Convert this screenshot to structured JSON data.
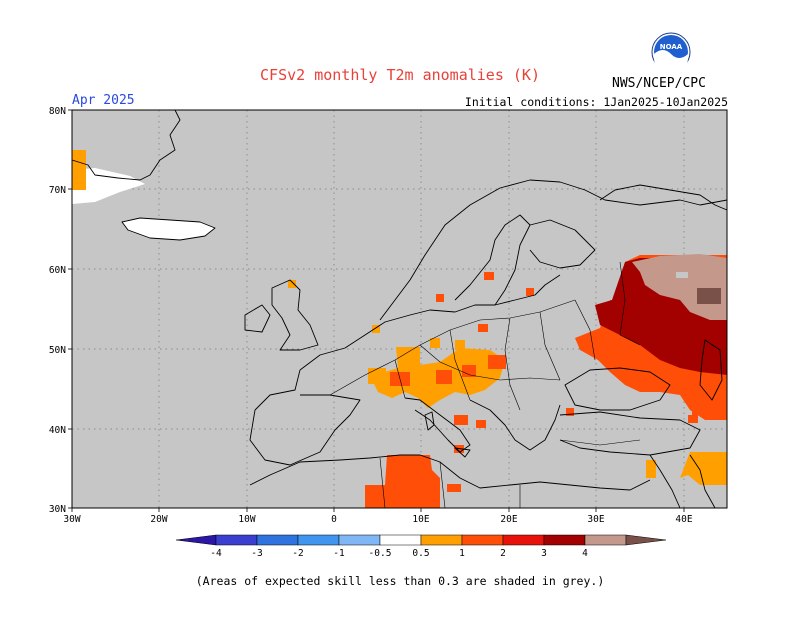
{
  "header": {
    "title": "CFSv2 monthly T2m anomalies (K)",
    "organization": "NWS/NCEP/CPC",
    "logo_text": "NOAA",
    "month": "Apr 2025",
    "initial_conditions": "Initial conditions: 1Jan2025-10Jan2025"
  },
  "map": {
    "lon_ticks": [
      "30W",
      "20W",
      "10W",
      "0",
      "10E",
      "20E",
      "30E",
      "40E"
    ],
    "lat_ticks": [
      "30N",
      "40N",
      "50N",
      "60N",
      "70N",
      "80N"
    ],
    "background_color": "#c6c6c6"
  },
  "colorbar": {
    "labels": [
      "-4",
      "-3",
      "-2",
      "-1",
      "-0.5",
      "0.5",
      "1",
      "2",
      "3",
      "4"
    ],
    "colors": [
      "#2b16a6",
      "#3b3fd0",
      "#2f73e0",
      "#4096ee",
      "#7fb6f6",
      "#ffffff",
      "#ffa000",
      "#ff4e08",
      "#e8120b",
      "#a30000",
      "#c5988c",
      "#7a5148"
    ]
  },
  "footer": {
    "caption": "(Areas of expected skill less than 0.3 are shaded in grey.)"
  }
}
